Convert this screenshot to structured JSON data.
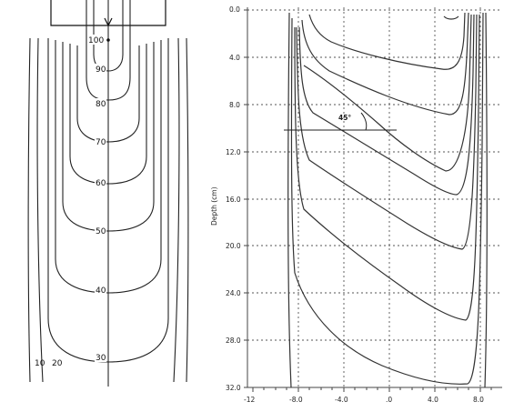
{
  "left_panel": {
    "isodose_labels": [
      "100",
      "90",
      "80",
      "70",
      "60",
      "50",
      "40",
      "30",
      "20",
      "10"
    ]
  },
  "right_panel": {
    "y_axis_label": "Depth (cm)",
    "y_ticks": [
      "0.0",
      "4.0",
      "8.0",
      "12.0",
      "16.0",
      "20.0",
      "24.0",
      "28.0",
      "32.0"
    ],
    "x_ticks": [
      "-12",
      "-8.0",
      "-4.0",
      ".0",
      "4.0",
      "8.0"
    ],
    "angle_label": "45°"
  }
}
